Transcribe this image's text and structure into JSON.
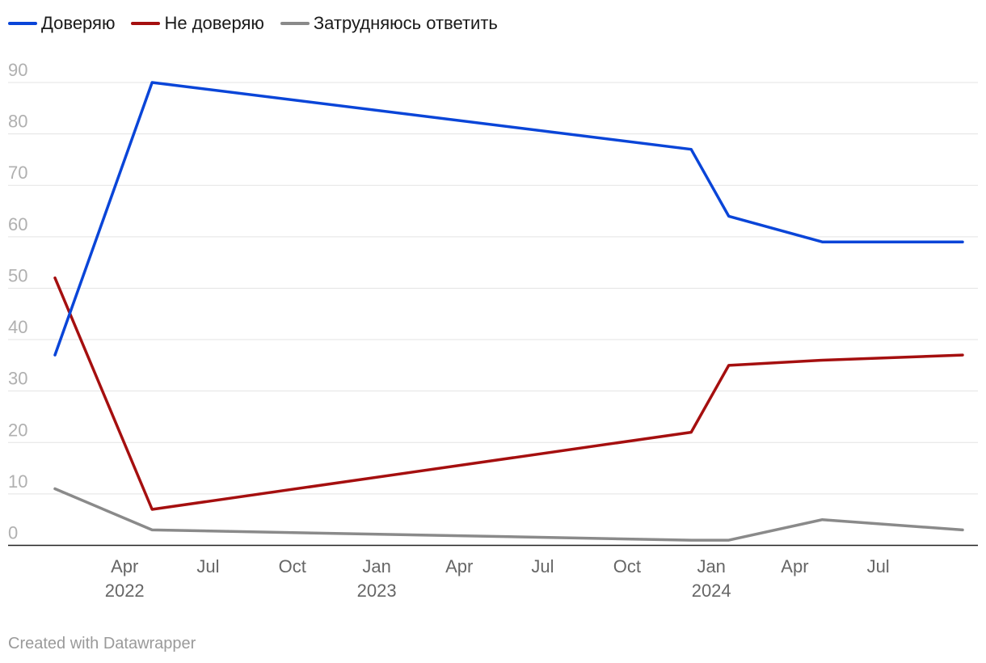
{
  "footer": "Created with Datawrapper",
  "chart_data": {
    "type": "line",
    "title": "",
    "xlabel": "",
    "ylabel": "",
    "ylim": [
      0,
      90
    ],
    "yticks": [
      0,
      10,
      20,
      30,
      40,
      50,
      60,
      70,
      80,
      90
    ],
    "xlim": [
      "2022-01-15",
      "2024-10-01"
    ],
    "xticks": [
      {
        "date": "2022-04-01",
        "label": "Apr",
        "year": "2022"
      },
      {
        "date": "2022-07-01",
        "label": "Jul",
        "year": ""
      },
      {
        "date": "2022-10-01",
        "label": "Oct",
        "year": ""
      },
      {
        "date": "2023-01-01",
        "label": "Jan",
        "year": "2023"
      },
      {
        "date": "2023-04-01",
        "label": "Apr",
        "year": ""
      },
      {
        "date": "2023-07-01",
        "label": "Jul",
        "year": ""
      },
      {
        "date": "2023-10-01",
        "label": "Oct",
        "year": ""
      },
      {
        "date": "2024-01-01",
        "label": "Jan",
        "year": "2024"
      },
      {
        "date": "2024-04-01",
        "label": "Apr",
        "year": ""
      },
      {
        "date": "2024-07-01",
        "label": "Jul",
        "year": ""
      }
    ],
    "grid": true,
    "legend_position": "top-left",
    "series": [
      {
        "name": "Доверяю",
        "color": "#0a45d8",
        "points": [
          [
            "2022-01-15",
            37
          ],
          [
            "2022-05-01",
            90
          ],
          [
            "2023-12-10",
            77
          ],
          [
            "2024-01-20",
            64
          ],
          [
            "2024-05-01",
            59
          ],
          [
            "2024-10-01",
            59
          ]
        ]
      },
      {
        "name": "Не доверяю",
        "color": "#a50f0f",
        "points": [
          [
            "2022-01-15",
            52
          ],
          [
            "2022-05-01",
            7
          ],
          [
            "2023-12-10",
            22
          ],
          [
            "2024-01-20",
            35
          ],
          [
            "2024-05-01",
            36
          ],
          [
            "2024-10-01",
            37
          ]
        ]
      },
      {
        "name": "Затрудняюсь ответить",
        "color": "#8a8a8a",
        "points": [
          [
            "2022-01-15",
            11
          ],
          [
            "2022-05-01",
            3
          ],
          [
            "2023-12-10",
            1
          ],
          [
            "2024-01-20",
            1
          ],
          [
            "2024-05-01",
            5
          ],
          [
            "2024-10-01",
            3
          ]
        ]
      }
    ]
  }
}
